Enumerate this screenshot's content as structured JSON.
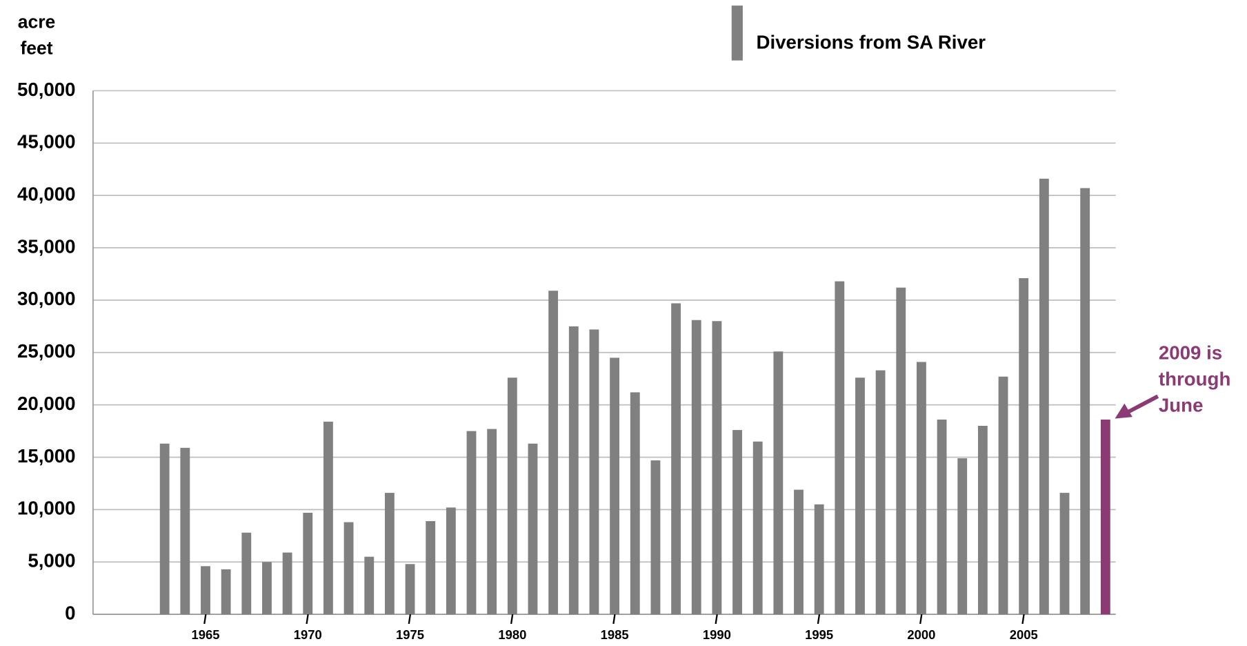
{
  "chart_data": {
    "type": "bar",
    "y_label": [
      "acre",
      "feet"
    ],
    "categories": [
      null,
      null,
      null,
      null,
      null,
      "1965",
      null,
      null,
      null,
      null,
      "1970",
      null,
      null,
      null,
      null,
      "1975",
      null,
      null,
      null,
      null,
      "1980",
      null,
      null,
      null,
      null,
      "1985",
      null,
      null,
      null,
      null,
      "1990",
      null,
      null,
      null,
      null,
      "1995",
      null,
      null,
      null,
      null,
      "2000",
      null,
      null,
      null,
      null,
      "2005",
      null,
      null,
      null,
      null
    ],
    "series": [
      {
        "name": "Diversions from SA River",
        "color": "#808080",
        "values": [
          null,
          null,
          null,
          16300,
          15900,
          4600,
          4300,
          7800,
          5000,
          5900,
          9700,
          18400,
          8800,
          5500,
          11600,
          4800,
          8900,
          10200,
          17500,
          17700,
          22600,
          16300,
          30900,
          27500,
          27200,
          24500,
          21200,
          14700,
          29700,
          28100,
          28000,
          17600,
          16500,
          25100,
          11900,
          10500,
          31800,
          22600,
          23300,
          31200,
          24100,
          18600,
          14900,
          18000,
          22700,
          32100,
          41600,
          11600,
          40700,
          18600
        ]
      }
    ],
    "colors": [
      "#808080",
      "#808080",
      "#808080",
      "#808080",
      "#808080",
      "#808080",
      "#808080",
      "#808080",
      "#808080",
      "#808080",
      "#808080",
      "#808080",
      "#808080",
      "#808080",
      "#808080",
      "#808080",
      "#808080",
      "#808080",
      "#808080",
      "#808080",
      "#808080",
      "#808080",
      "#808080",
      "#808080",
      "#808080",
      "#808080",
      "#808080",
      "#808080",
      "#808080",
      "#808080",
      "#808080",
      "#808080",
      "#808080",
      "#808080",
      "#808080",
      "#808080",
      "#808080",
      "#808080",
      "#808080",
      "#808080",
      "#808080",
      "#808080",
      "#808080",
      "#808080",
      "#808080",
      "#808080",
      "#808080",
      "#808080",
      "#808080",
      "#8b3a73"
    ],
    "ylim": [
      0,
      50000
    ],
    "yticks": [
      0,
      {
        "value": 5000,
        "label": "5,000"
      },
      {
        "value": 10000,
        "label": "10,000"
      },
      {
        "value": 15000,
        "label": "15,000"
      },
      {
        "value": 20000,
        "label": "20,000"
      },
      {
        "value": 25000,
        "label": "25,000"
      },
      {
        "value": 30000,
        "label": "30,000"
      },
      {
        "value": 35000,
        "label": "35,000"
      },
      {
        "value": 40000,
        "label": "40,000"
      },
      {
        "value": 45000,
        "label": "45,000"
      },
      {
        "value": 50000,
        "label": "50,000"
      }
    ],
    "grid": true,
    "annotation": {
      "text": [
        "2009 is",
        "through",
        "June"
      ],
      "color": "#8b3a73"
    }
  }
}
